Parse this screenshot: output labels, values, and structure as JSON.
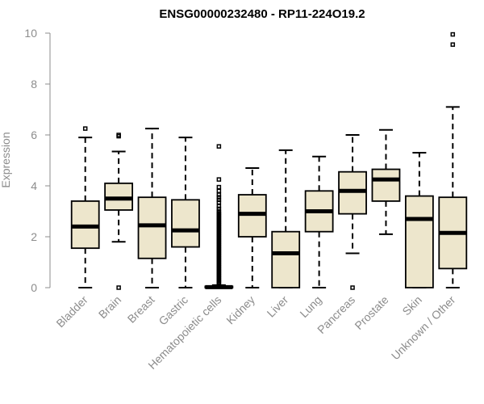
{
  "chart_data": {
    "type": "boxplot",
    "title": "ENSG00000232480 - RP11-224O19.2",
    "xlabel": "",
    "ylabel": "Expression",
    "ylim": [
      0,
      10
    ],
    "yticks": [
      0,
      2,
      4,
      6,
      8,
      10
    ],
    "grid": false,
    "colors": {
      "box_fill": "#ede6cc",
      "box_stroke": "#000000",
      "axis": "#8c8c8c"
    },
    "categories": [
      "Bladder",
      "Brain",
      "Breast",
      "Gastric",
      "Hematopoietic cells",
      "Kidney",
      "Liver",
      "Lung",
      "Pancreas",
      "Prostate",
      "Skin",
      "Unknown / Other"
    ],
    "boxes": [
      {
        "min": 0,
        "q1": 1.55,
        "median": 2.4,
        "q3": 3.4,
        "max": 5.9,
        "outliers": [
          6.25
        ]
      },
      {
        "min": 1.8,
        "q1": 3.05,
        "median": 3.5,
        "q3": 4.1,
        "max": 5.35,
        "outliers": [
          5.95,
          6.0,
          0.0
        ]
      },
      {
        "min": 0,
        "q1": 1.15,
        "median": 2.45,
        "q3": 3.55,
        "max": 6.25,
        "outliers": []
      },
      {
        "min": 0,
        "q1": 1.6,
        "median": 2.25,
        "q3": 3.45,
        "max": 5.9,
        "outliers": []
      },
      {
        "min": 0,
        "q1": 0,
        "median": 0.02,
        "q3": 0.05,
        "max": 0.1,
        "outliers": [
          0.15,
          0.2,
          0.25,
          0.3,
          0.35,
          0.4,
          0.45,
          0.5,
          0.55,
          0.6,
          0.65,
          0.7,
          0.75,
          0.8,
          0.85,
          0.9,
          0.95,
          1.0,
          1.05,
          1.1,
          1.15,
          1.2,
          1.25,
          1.3,
          1.35,
          1.4,
          1.45,
          1.5,
          1.55,
          1.6,
          1.65,
          1.7,
          1.75,
          1.8,
          1.85,
          1.9,
          1.95,
          2.0,
          2.05,
          2.1,
          2.15,
          2.2,
          2.25,
          2.3,
          2.35,
          2.4,
          2.45,
          2.5,
          2.55,
          2.6,
          2.65,
          2.7,
          2.75,
          2.8,
          2.85,
          2.9,
          2.95,
          3.0,
          3.1,
          3.2,
          3.35,
          3.45,
          3.55,
          3.65,
          3.8,
          3.95,
          4.25,
          5.55
        ]
      },
      {
        "min": 0,
        "q1": 2.0,
        "median": 2.9,
        "q3": 3.65,
        "max": 4.7,
        "outliers": []
      },
      {
        "min": 0,
        "q1": 0,
        "median": 1.35,
        "q3": 2.2,
        "max": 5.4,
        "outliers": []
      },
      {
        "min": 0,
        "q1": 2.2,
        "median": 3.0,
        "q3": 3.8,
        "max": 5.15,
        "outliers": []
      },
      {
        "min": 1.35,
        "q1": 2.9,
        "median": 3.8,
        "q3": 4.55,
        "max": 6.0,
        "outliers": [
          0.0
        ]
      },
      {
        "min": 2.1,
        "q1": 3.4,
        "median": 4.25,
        "q3": 4.65,
        "max": 6.2,
        "outliers": []
      },
      {
        "min": 0,
        "q1": 0,
        "median": 2.7,
        "q3": 3.6,
        "max": 5.3,
        "outliers": []
      },
      {
        "min": 0,
        "q1": 0.75,
        "median": 2.15,
        "q3": 3.55,
        "max": 7.1,
        "outliers": [
          9.55,
          9.95
        ]
      }
    ]
  }
}
